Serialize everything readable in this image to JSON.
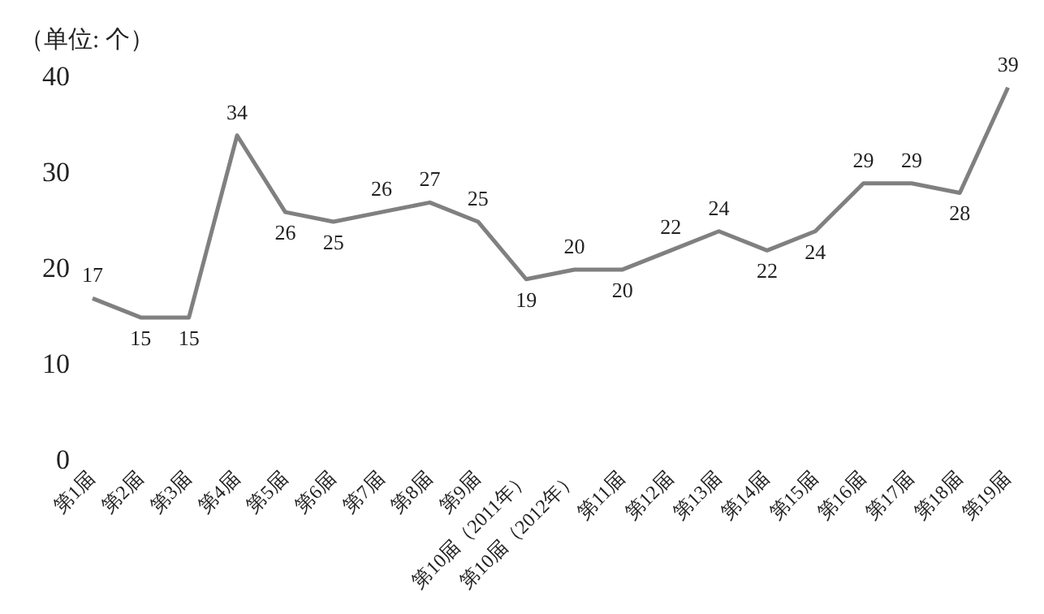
{
  "chart_data": {
    "type": "line",
    "ylabel": "（单位: 个）",
    "categories": [
      "第1届",
      "第2届",
      "第3届",
      "第4届",
      "第5届",
      "第6届",
      "第7届",
      "第8届",
      "第9届",
      "第10届（2011年）",
      "第10届（2012年）",
      "第11届",
      "第12届",
      "第13届",
      "第14届",
      "第15届",
      "第16届",
      "第17届",
      "第18届",
      "第19届"
    ],
    "series": [
      {
        "color": "#808080",
        "values": [
          17,
          15,
          15,
          34,
          26,
          25,
          26,
          27,
          25,
          19,
          20,
          20,
          22,
          24,
          22,
          24,
          29,
          29,
          28,
          39
        ]
      }
    ],
    "ylim": [
      0,
      40
    ],
    "yticks": [
      0,
      10,
      20,
      30,
      40
    ],
    "grid": false,
    "legend": false,
    "marker": "none",
    "line_style": "solid",
    "data_labels": true
  }
}
